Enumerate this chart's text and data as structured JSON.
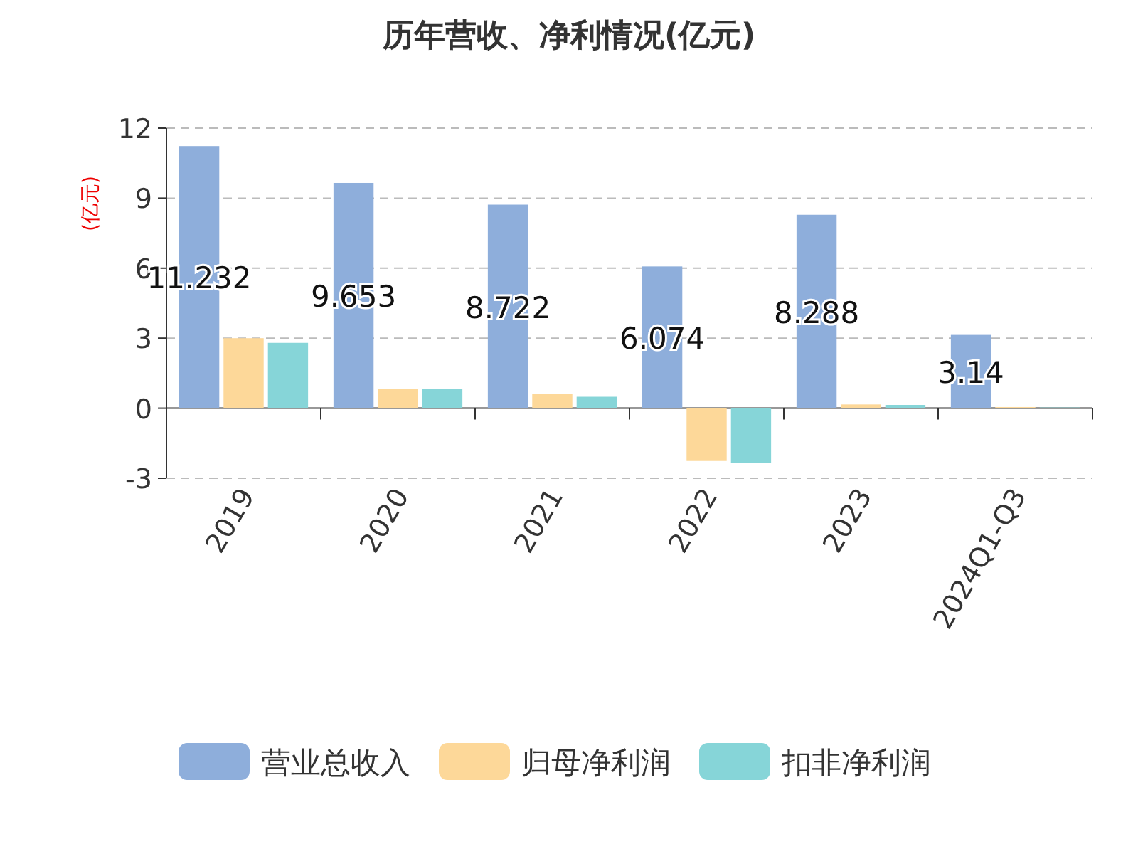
{
  "chart_data": {
    "type": "bar",
    "title": "历年营收、净利情况(亿元)",
    "ylabel": "(亿元)",
    "categories": [
      "2019",
      "2020",
      "2021",
      "2022",
      "2023",
      "2024Q1-Q3"
    ],
    "series": [
      {
        "name": "营业总收入",
        "color": "#8eaedb",
        "values": [
          11.232,
          9.653,
          8.722,
          6.074,
          8.288,
          3.14
        ],
        "value_labels": [
          "11.232",
          "9.653",
          "8.722",
          "6.074",
          "8.288",
          "3.14"
        ]
      },
      {
        "name": "归母净利润",
        "color": "#fdd899",
        "values": [
          3.0,
          0.84,
          0.6,
          -2.26,
          0.16,
          0.05
        ]
      },
      {
        "name": "扣非净利润",
        "color": "#86d5d8",
        "values": [
          2.8,
          0.84,
          0.49,
          -2.34,
          0.14,
          0.03
        ]
      }
    ],
    "ylim": [
      -3,
      12
    ],
    "yticks": [
      -3,
      0,
      3,
      6,
      9,
      12
    ],
    "grid": "y",
    "legend": "bottom"
  }
}
